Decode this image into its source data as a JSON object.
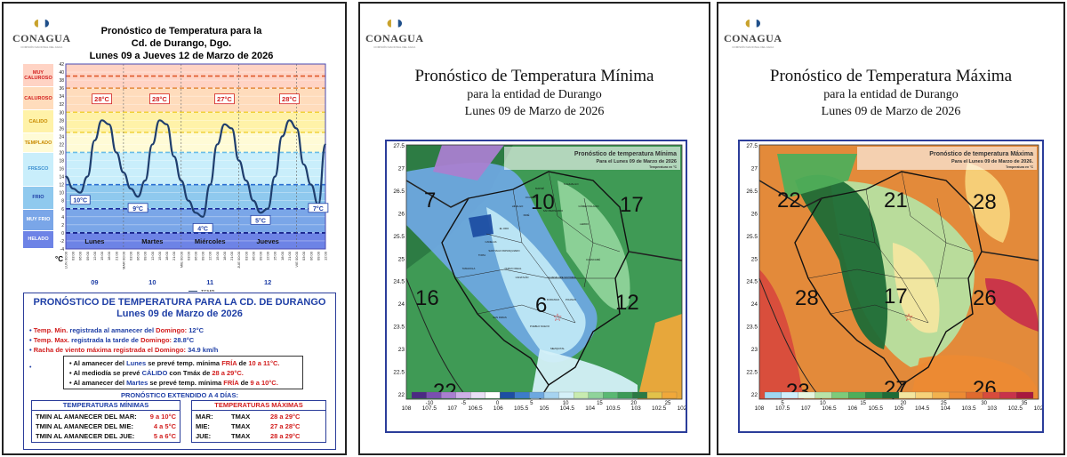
{
  "logo": {
    "name": "CONAGUA",
    "sub": "COMISIÓN NACIONAL DEL AGUA"
  },
  "panel1": {
    "title": [
      "Pronóstico  de Temperatura para la",
      "Cd. de Durango, Dgo.",
      "Lunes 09 a Jueves 12 de Marzo de 2026"
    ],
    "bands": [
      {
        "label": "MUY CALUROSO",
        "color": "#ffd3c4"
      },
      {
        "label": "CALUROSO",
        "color": "#ffdcbc"
      },
      {
        "label": "CALIDO",
        "color": "#fff2a8"
      },
      {
        "label": "TEMPLADO",
        "color": "#fffbd6"
      },
      {
        "label": "FRESCO",
        "color": "#c9eefb"
      },
      {
        "label": "FRIO",
        "color": "#8fc9ee"
      },
      {
        "label": "MUY FRIO",
        "color": "#7aa6e8"
      },
      {
        "label": "HELADO",
        "color": "#6d83e6"
      }
    ],
    "y_ticks": [
      "42",
      "40",
      "38",
      "36",
      "34",
      "32",
      "30",
      "28",
      "26",
      "24",
      "22",
      "20",
      "18",
      "16",
      "14",
      "12",
      "10",
      "8",
      "6",
      "4",
      "2",
      "0",
      "-2",
      "-4"
    ],
    "unit": "°C",
    "max_labels": [
      "28°C",
      "28°C",
      "27°C",
      "28°C"
    ],
    "min_labels": [
      "10°C",
      "9°C",
      "4°C",
      "5°C",
      "7°C"
    ],
    "days": [
      "Lunes",
      "Martes",
      "Miércoles",
      "Jueves"
    ],
    "day_numbers": [
      "09",
      "10",
      "11",
      "12"
    ],
    "time_labels": [
      "LUN 00:00",
      "03:00",
      "06:00",
      "09:00",
      "12:00",
      "15:00",
      "18:00",
      "21:00",
      "MAR 00:00",
      "03:00",
      "06:00",
      "09:00",
      "12:00",
      "15:00",
      "18:00",
      "21:00",
      "MIE 00:00",
      "03:00",
      "06:00",
      "09:00",
      "12:00",
      "15:00",
      "18:00",
      "21:00",
      "JUE 00:00",
      "03:00",
      "06:00",
      "09:00",
      "12:00",
      "15:00",
      "18:00",
      "21:00",
      "VIE 00:00",
      "03:00",
      "06:00",
      "09:00",
      "12:00"
    ],
    "legend": "TEMP"
  },
  "chart_data": {
    "type": "line",
    "title": "Pronóstico de Temperatura para la Cd. de Durango, Dgo.",
    "xlabel": "",
    "ylabel": "°C",
    "ylim": [
      -4,
      42
    ],
    "x": [
      "LUN 00:00",
      "03:00",
      "06:00",
      "09:00",
      "12:00",
      "15:00",
      "18:00",
      "21:00",
      "MAR 00:00",
      "03:00",
      "06:00",
      "09:00",
      "12:00",
      "15:00",
      "18:00",
      "21:00",
      "MIE 00:00",
      "03:00",
      "06:00",
      "09:00",
      "12:00",
      "15:00",
      "18:00",
      "21:00",
      "JUE 00:00",
      "03:00",
      "06:00",
      "09:00",
      "12:00",
      "15:00",
      "18:00",
      "21:00",
      "VIE 00:00",
      "03:00",
      "06:00",
      "09:00",
      "12:00"
    ],
    "series": [
      {
        "name": "TEMP",
        "values": [
          14,
          11,
          10,
          14,
          23,
          28,
          27,
          20,
          15,
          11,
          9,
          13,
          22,
          28,
          27,
          19,
          13,
          8,
          5,
          4,
          12,
          22,
          27,
          26,
          18,
          13,
          8,
          5,
          6,
          14,
          24,
          28,
          26,
          17,
          12,
          7,
          22
        ]
      }
    ],
    "reference_lines": [
      39,
      36,
      30,
      25,
      20,
      12,
      6,
      0
    ]
  },
  "report": {
    "title": [
      "PRONÓSTICO DE TEMPERATURA PARA LA CD. DE DURANGO",
      "Lunes 09 de Marzo de 2026"
    ],
    "obs": [
      {
        "pre": "Temp. Min.",
        "mid": " registrada al amanecer del ",
        "day": "Domingo:",
        "val": " 12°C"
      },
      {
        "pre": "Temp. Max.",
        "mid": " registrada la tarde de ",
        "day": "Domingo:",
        "val": " 28.8°C"
      },
      {
        "pre": "Racha de viento máxima registrada el ",
        "mid": "",
        "day": "Domingo:",
        "val": " 34.9 km/h"
      }
    ],
    "forecast": [
      [
        "Al amanecer del ",
        "Lunes",
        " se prevé temp. mínima ",
        "FRÍA",
        " de ",
        "10 a 11°C."
      ],
      [
        "Al mediodía se prevé ",
        "CÁLIDO",
        " con Tmáx de ",
        "28 a 29°C.",
        "",
        ""
      ],
      [
        "Al amanecer del ",
        "Martes",
        " se prevé temp. mínima ",
        "FRÍA",
        " de ",
        "9 a 10°C."
      ]
    ],
    "extended_title": "PRONÓSTICO EXTENDIDO A 4 DÍAS:",
    "min_title": "TEMPERATURAS MÍNIMAS",
    "min_rows": [
      [
        "TMIN AL AMANECER DEL  MAR:",
        "9 a 10°C"
      ],
      [
        "TMIN AL AMANECER DEL  MIE:",
        "4 a 5°C"
      ],
      [
        "TMIN AL AMANECER DEL  JUE:",
        "5 a 6°C"
      ]
    ],
    "max_title": "TEMPERATURAS MÁXIMAS",
    "max_rows": [
      [
        "MAR:",
        "TMAX",
        "28 a 29°C"
      ],
      [
        "MIE:",
        "TMAX",
        "27 a 28°C"
      ],
      [
        "JUE:",
        "TMAX",
        "28 a 29°C"
      ]
    ]
  },
  "map_min": {
    "title": "Pronóstico de Temperatura Mínima",
    "sub1": "para la entidad de Durango",
    "sub2": "Lunes 09 de Marzo de 2026",
    "inner_title": "Pronóstico de temperatura Mínima",
    "inner_sub": "Para el Lunes 09 de Marzo de 2026",
    "inner_unit": "Temperatura en °C",
    "big_labels": [
      "7",
      "10",
      "17",
      "16",
      "6",
      "12",
      "22"
    ],
    "colorbar_ticks": [
      "-10",
      "-5",
      "0",
      "5",
      "10",
      "15",
      "20",
      "25"
    ],
    "colorbar_colors": [
      "#4b2a82",
      "#7a4fb0",
      "#a97fd0",
      "#cdb0e6",
      "#e9dff5",
      "#ffffff",
      "#1d4ea3",
      "#3d7cc9",
      "#6ea8e0",
      "#a6d3f0",
      "#d4f0f8",
      "#c8ebb0",
      "#8fd39a",
      "#5ab873",
      "#3c9a57",
      "#2b7a44",
      "#e2c24a",
      "#f0a83a"
    ],
    "x_ticks": [
      "108",
      "107.5",
      "107",
      "106.5",
      "106",
      "105.5",
      "105",
      "104.5",
      "104",
      "103.5",
      "103",
      "102.5",
      "102"
    ],
    "y_ticks": [
      "27.5",
      "27",
      "26.5",
      "26",
      "25.5",
      "25",
      "24.5",
      "24",
      "23.5",
      "23",
      "22.5",
      "22"
    ],
    "municipalities": [
      "MAPIMÍ",
      "TLAHUALILO",
      "GÓMEZ PALACIO",
      "LERDO",
      "OCAMPO",
      "HIDALGO",
      "INDÉ",
      "EL ORO",
      "SAN BERNARDO",
      "CUENCAMÉ",
      "SANTIAGO PAPASQUIARO",
      "TOPIA",
      "CANELAS",
      "TAMAZULA",
      "NUEVO IDEAL",
      "CANATLÁN",
      "GUADALUPE VICTORIA",
      "POANAS",
      "DURANGO",
      "PUEBLO NUEVO",
      "SAN DIMAS",
      "MEZQUITAL"
    ]
  },
  "map_max": {
    "title": "Pronóstico de Temperatura Máxima",
    "sub1": "para la entidad de Durango",
    "sub2": "Lunes 09 de Marzo de 2026",
    "inner_title": "Pronóstico de temperatura Máxima",
    "inner_sub": "Para el Lunes 09 de Marzo de 2026.",
    "inner_unit": "Temperatura en °C",
    "big_labels": [
      "22",
      "21",
      "28",
      "28",
      "17",
      "26",
      "23",
      "27",
      "26"
    ],
    "colorbar_ticks": [
      "5",
      "10",
      "15",
      "20",
      "25",
      "30",
      "35"
    ],
    "colorbar_colors": [
      "#9fd6f2",
      "#cfeefb",
      "#e6f6e0",
      "#b8e3a8",
      "#7ecb7a",
      "#4fae5a",
      "#2d8a45",
      "#1e6b36",
      "#f3e6a0",
      "#f7d27a",
      "#f2b24f",
      "#ec8a33",
      "#e06a2e",
      "#d84b3c",
      "#c8324a",
      "#a8183e"
    ],
    "x_ticks": [
      "108",
      "107.5",
      "107",
      "106.5",
      "106",
      "105.5",
      "105",
      "104.5",
      "104",
      "103.5",
      "103",
      "102.5",
      "102"
    ],
    "y_ticks": [
      "27.5",
      "27",
      "26.5",
      "26",
      "25.5",
      "25",
      "24.5",
      "24",
      "23.5",
      "23",
      "22.5",
      "22"
    ]
  }
}
